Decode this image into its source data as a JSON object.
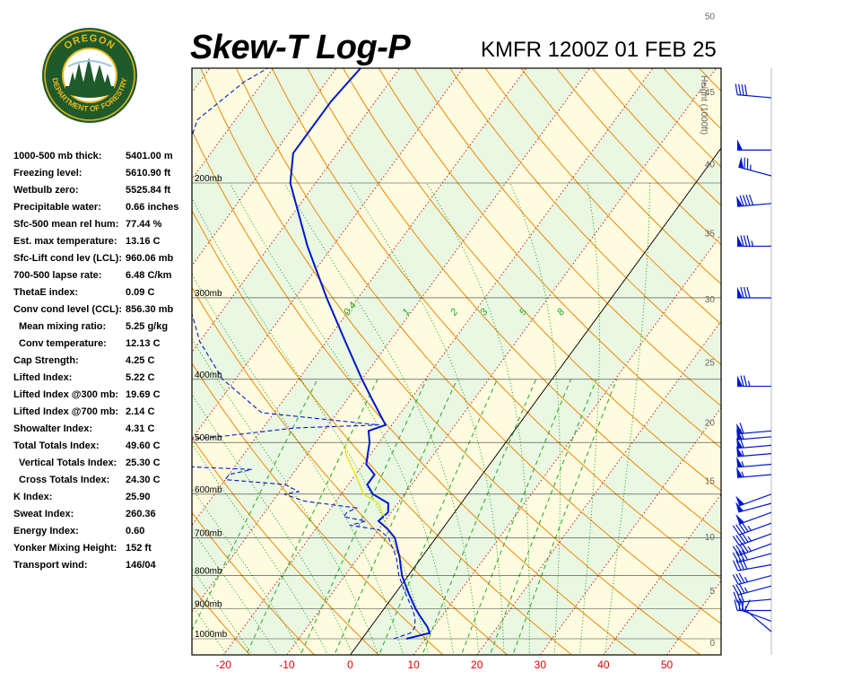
{
  "header": {
    "title": "Skew-T Log-P",
    "station_time": "KMFR 1200Z 01 FEB 25"
  },
  "logo": {
    "top_text": "OREGON",
    "bottom_text": "DEPARTMENT OF FORESTRY",
    "colors": {
      "ring": "#1f5a2a",
      "gold": "#e8b820"
    }
  },
  "indices": [
    {
      "label": "1000-500 mb thick:",
      "value": "5401.00 m"
    },
    {
      "label": "Freezing level:",
      "value": "5610.90 ft"
    },
    {
      "label": "Wetbulb zero:",
      "value": "5525.84 ft"
    },
    {
      "label": "Precipitable water:",
      "value": "0.66 inches"
    },
    {
      "label": "Sfc-500 mean rel hum:",
      "value": "77.44 %"
    },
    {
      "label": "Est. max temperature:",
      "value": "13.16 C"
    },
    {
      "label": "Sfc-Lift cond lev (LCL):",
      "value": "960.06 mb"
    },
    {
      "label": "700-500 lapse rate:",
      "value": "6.48 C/km"
    },
    {
      "label": "ThetaE index:",
      "value": "0.09 C"
    },
    {
      "label": "Conv cond level (CCL):",
      "value": "856.30 mb"
    },
    {
      "label": "Mean mixing ratio:",
      "value": "5.25 g/kg",
      "sub": true
    },
    {
      "label": "Conv temperature:",
      "value": "12.13 C",
      "sub": true
    },
    {
      "label": "Cap Strength:",
      "value": "4.25 C"
    },
    {
      "label": "Lifted Index:",
      "value": "5.22 C"
    },
    {
      "label": "Lifted Index @300 mb:",
      "value": "19.69 C"
    },
    {
      "label": "Lifted Index @700 mb:",
      "value": "2.14 C"
    },
    {
      "label": "Showalter Index:",
      "value": "4.31 C"
    },
    {
      "label": "Total Totals Index:",
      "value": "49.60 C"
    },
    {
      "label": "Vertical Totals Index:",
      "value": "25.30 C",
      "sub": true
    },
    {
      "label": "Cross Totals Index:",
      "value": "24.30 C",
      "sub": true
    },
    {
      "label": "K Index:",
      "value": "25.90"
    },
    {
      "label": "Sweat Index:",
      "value": "260.36"
    },
    {
      "label": "Energy Index:",
      "value": "0.60"
    },
    {
      "label": "Yonker Mixing Height:",
      "value": "152 ft"
    },
    {
      "label": "Transport wind:",
      "value": "146/04"
    }
  ],
  "chart_data": {
    "type": "line",
    "title": "Skew-T Log-P",
    "subtitle": "KMFR 1200Z 01 FEB 25",
    "x_axis": {
      "label": "",
      "unit": "C",
      "ticks": [
        -20,
        -10,
        0,
        10,
        20,
        30,
        40,
        50
      ],
      "tick_color": "#dd0000"
    },
    "pressure_levels": [
      {
        "p": 1000,
        "label": "1000mb"
      },
      {
        "p": 900,
        "label": "900mb"
      },
      {
        "p": 800,
        "label": "800mb"
      },
      {
        "p": 700,
        "label": "700mb"
      },
      {
        "p": 600,
        "label": "600mb"
      },
      {
        "p": 500,
        "label": "500mb"
      },
      {
        "p": 400,
        "label": "400mb"
      },
      {
        "p": 300,
        "label": "300mb"
      },
      {
        "p": 200,
        "label": "200mb"
      }
    ],
    "height_axis": {
      "label": "Height (1000ft)",
      "ticks": [
        {
          "label": "0",
          "kft": 0
        },
        {
          "label": "5",
          "kft": 5
        },
        {
          "label": "10",
          "kft": 10
        },
        {
          "label": "15",
          "kft": 15
        },
        {
          "label": "20",
          "kft": 20
        },
        {
          "label": "25",
          "kft": 25
        },
        {
          "label": "30",
          "kft": 30
        },
        {
          "label": "35",
          "kft": 35
        },
        {
          "label": "40",
          "kft": 40
        },
        {
          "label": "45",
          "kft": 45
        },
        {
          "label": "50",
          "kft": 50
        }
      ]
    },
    "mixing_ratio_labels": [
      "0.4",
      "1",
      "2",
      "3",
      "5",
      "8"
    ],
    "series": [
      {
        "name": "Temperature",
        "role": "temperature",
        "color": "#0018cc",
        "style": "solid",
        "points": [
          {
            "p": 1000,
            "t": 7
          },
          {
            "p": 980,
            "t": 10
          },
          {
            "p": 960,
            "t": 9
          },
          {
            "p": 930,
            "t": 7
          },
          {
            "p": 900,
            "t": 5
          },
          {
            "p": 850,
            "t": 2
          },
          {
            "p": 800,
            "t": -1
          },
          {
            "p": 750,
            "t": -3.5
          },
          {
            "p": 700,
            "t": -6.5
          },
          {
            "p": 680,
            "t": -8.5
          },
          {
            "p": 660,
            "t": -11
          },
          {
            "p": 640,
            "t": -10.5
          },
          {
            "p": 620,
            "t": -11.5
          },
          {
            "p": 600,
            "t": -15
          },
          {
            "p": 580,
            "t": -17
          },
          {
            "p": 560,
            "t": -17
          },
          {
            "p": 540,
            "t": -19.5
          },
          {
            "p": 520,
            "t": -20.5
          },
          {
            "p": 500,
            "t": -21.5
          },
          {
            "p": 480,
            "t": -23
          },
          {
            "p": 470,
            "t": -21
          },
          {
            "p": 430,
            "t": -26
          },
          {
            "p": 400,
            "t": -30
          },
          {
            "p": 350,
            "t": -37
          },
          {
            "p": 300,
            "t": -45
          },
          {
            "p": 250,
            "t": -54
          },
          {
            "p": 200,
            "t": -64
          },
          {
            "p": 180,
            "t": -67
          },
          {
            "p": 150,
            "t": -67
          },
          {
            "p": 130,
            "t": -66
          },
          {
            "p": 119,
            "t": -68
          }
        ]
      },
      {
        "name": "Dewpoint",
        "role": "dewpoint",
        "color": "#0018cc",
        "style": "dashed",
        "points": [
          {
            "p": 1000,
            "t": 5
          },
          {
            "p": 980,
            "t": 7
          },
          {
            "p": 960,
            "t": 7
          },
          {
            "p": 930,
            "t": 6
          },
          {
            "p": 900,
            "t": 4.5
          },
          {
            "p": 850,
            "t": 1.5
          },
          {
            "p": 800,
            "t": -1.5
          },
          {
            "p": 750,
            "t": -4
          },
          {
            "p": 700,
            "t": -7.5
          },
          {
            "p": 680,
            "t": -10
          },
          {
            "p": 670,
            "t": -15
          },
          {
            "p": 660,
            "t": -13
          },
          {
            "p": 650,
            "t": -17
          },
          {
            "p": 640,
            "t": -17
          },
          {
            "p": 630,
            "t": -16
          },
          {
            "p": 615,
            "t": -25
          },
          {
            "p": 600,
            "t": -29
          },
          {
            "p": 595,
            "t": -27
          },
          {
            "p": 580,
            "t": -30
          },
          {
            "p": 570,
            "t": -40
          },
          {
            "p": 560,
            "t": -40
          },
          {
            "p": 550,
            "t": -37
          },
          {
            "p": 545,
            "t": -47
          },
          {
            "p": 530,
            "t": -50
          },
          {
            "p": 510,
            "t": -55
          },
          {
            "p": 500,
            "t": -57
          },
          {
            "p": 490,
            "t": -46
          },
          {
            "p": 475,
            "t": -35
          },
          {
            "p": 470,
            "t": -22
          },
          {
            "p": 450,
            "t": -42
          },
          {
            "p": 400,
            "t": -52
          },
          {
            "p": 350,
            "t": -60
          },
          {
            "p": 300,
            "t": -67
          },
          {
            "p": 250,
            "t": -74
          },
          {
            "p": 200,
            "t": -82
          },
          {
            "p": 160,
            "t": -86
          },
          {
            "p": 140,
            "t": -83
          },
          {
            "p": 125,
            "t": -78
          },
          {
            "p": 119,
            "t": -74
          }
        ]
      },
      {
        "name": "Parcel",
        "role": "parcel",
        "color": "#e6e600",
        "style": "solid",
        "points": [
          {
            "p": 650,
            "t": -10.5
          },
          {
            "p": 640,
            "t": -11.5
          },
          {
            "p": 620,
            "t": -13
          },
          {
            "p": 600,
            "t": -16.5
          },
          {
            "p": 560,
            "t": -20
          },
          {
            "p": 540,
            "t": -22
          },
          {
            "p": 520,
            "t": -24
          },
          {
            "p": 505,
            "t": -25
          }
        ]
      }
    ],
    "wind_barbs": [
      {
        "p": 975,
        "dir": 310,
        "spd": 10
      },
      {
        "p": 940,
        "dir": 290,
        "spd": 25
      },
      {
        "p": 905,
        "dir": 270,
        "spd": 30
      },
      {
        "p": 870,
        "dir": 265,
        "spd": 30
      },
      {
        "p": 830,
        "dir": 255,
        "spd": 35
      },
      {
        "p": 800,
        "dir": 255,
        "spd": 35
      },
      {
        "p": 770,
        "dir": 260,
        "spd": 40
      },
      {
        "p": 740,
        "dir": 255,
        "spd": 40
      },
      {
        "p": 715,
        "dir": 250,
        "spd": 45
      },
      {
        "p": 690,
        "dir": 250,
        "spd": 45
      },
      {
        "p": 665,
        "dir": 250,
        "spd": 45
      },
      {
        "p": 640,
        "dir": 250,
        "spd": 50
      },
      {
        "p": 620,
        "dir": 255,
        "spd": 50
      },
      {
        "p": 600,
        "dir": 250,
        "spd": 50
      },
      {
        "p": 560,
        "dir": 265,
        "spd": 55
      },
      {
        "p": 540,
        "dir": 265,
        "spd": 55
      },
      {
        "p": 520,
        "dir": 265,
        "spd": 55
      },
      {
        "p": 505,
        "dir": 265,
        "spd": 60
      },
      {
        "p": 490,
        "dir": 265,
        "spd": 60
      },
      {
        "p": 480,
        "dir": 265,
        "spd": 60
      },
      {
        "p": 410,
        "dir": 270,
        "spd": 75
      },
      {
        "p": 300,
        "dir": 270,
        "spd": 80
      },
      {
        "p": 250,
        "dir": 270,
        "spd": 85
      },
      {
        "p": 215,
        "dir": 265,
        "spd": 90
      },
      {
        "p": 195,
        "dir": 285,
        "spd": 75
      },
      {
        "p": 178,
        "dir": 270,
        "spd": 50
      },
      {
        "p": 148,
        "dir": 275,
        "spd": 40
      }
    ],
    "colors": {
      "dry_adiabat": "#ee8800",
      "isotherm": "#cc0000",
      "moist_adiabat": "#009900",
      "mixing_ratio": "#22aa22",
      "isobar": "#000000",
      "band_green": "#eaf7e2",
      "band_yellow": "#fdfbe0",
      "profile": "#0018cc",
      "parcel": "#e6e600"
    }
  }
}
